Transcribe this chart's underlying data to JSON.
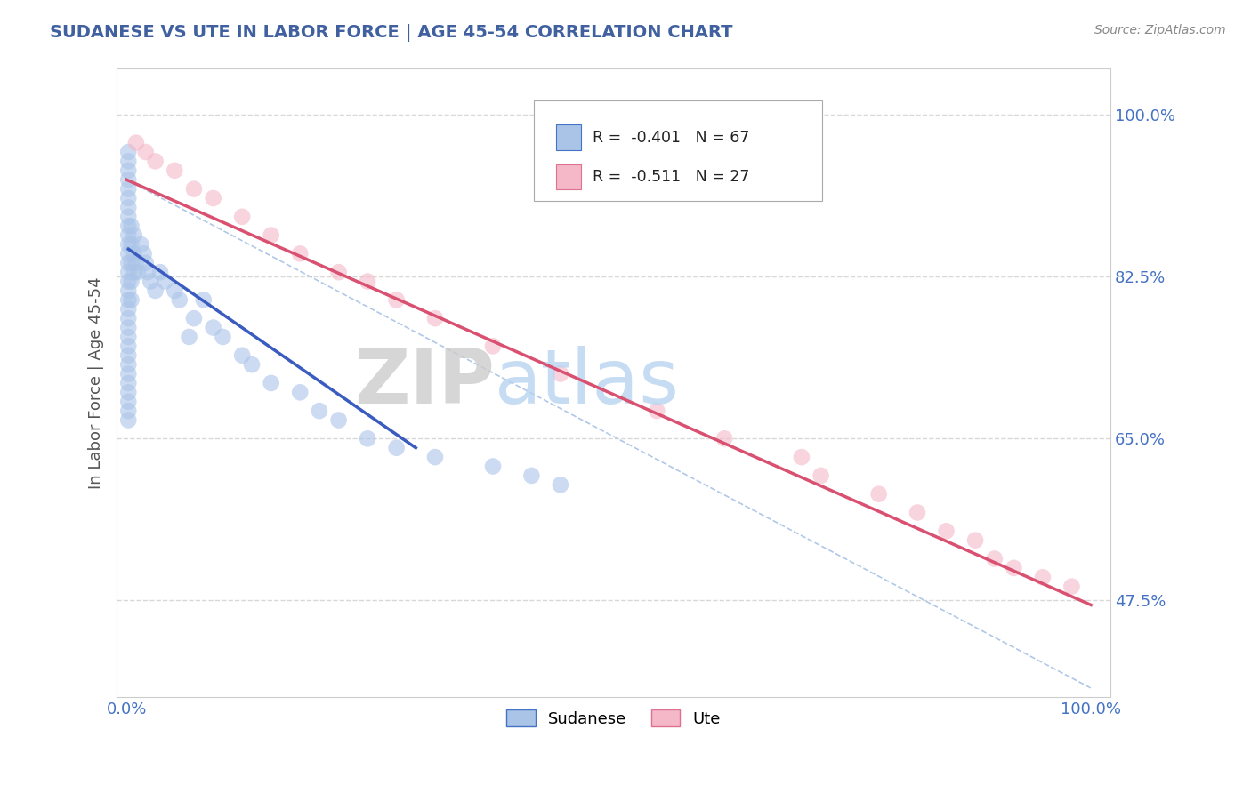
{
  "title": "SUDANESE VS UTE IN LABOR FORCE | AGE 45-54 CORRELATION CHART",
  "source_text": "Source: ZipAtlas.com",
  "ylabel": "In Labor Force | Age 45-54",
  "blue_R": -0.401,
  "blue_N": 67,
  "pink_R": -0.511,
  "pink_N": 27,
  "blue_dot_color": "#aac4e8",
  "blue_edge_color": "#4472c4",
  "blue_line_color": "#3a5bbf",
  "pink_dot_color": "#f4b8c8",
  "pink_edge_color": "#e07090",
  "pink_line_color": "#d95070",
  "diag_color": "#b0c8e8",
  "grid_color": "#d8d8d8",
  "legend_blue_label": "Sudanese",
  "legend_pink_label": "Ute",
  "watermark_zip": "ZIP",
  "watermark_atlas": "atlas",
  "title_color": "#4060a0",
  "source_color": "#888888",
  "tick_color": "#4472c4",
  "ylabel_color": "#555555",
  "x_ticks": [
    0.0,
    1.0
  ],
  "x_tick_labels": [
    "0.0%",
    "100.0%"
  ],
  "y_ticks": [
    0.475,
    0.65,
    0.825,
    1.0
  ],
  "y_tick_labels": [
    "47.5%",
    "65.0%",
    "82.5%",
    "100.0%"
  ],
  "xlim": [
    -0.01,
    1.02
  ],
  "ylim": [
    0.37,
    1.05
  ],
  "sudanese_x": [
    0.002,
    0.002,
    0.002,
    0.002,
    0.002,
    0.002,
    0.002,
    0.002,
    0.002,
    0.002,
    0.002,
    0.002,
    0.002,
    0.002,
    0.002,
    0.002,
    0.002,
    0.002,
    0.002,
    0.002,
    0.002,
    0.002,
    0.002,
    0.002,
    0.002,
    0.002,
    0.002,
    0.002,
    0.002,
    0.002,
    0.005,
    0.005,
    0.005,
    0.005,
    0.005,
    0.008,
    0.008,
    0.008,
    0.01,
    0.012,
    0.015,
    0.018,
    0.02,
    0.022,
    0.025,
    0.03,
    0.035,
    0.04,
    0.05,
    0.055,
    0.065,
    0.07,
    0.08,
    0.09,
    0.1,
    0.12,
    0.13,
    0.15,
    0.18,
    0.2,
    0.22,
    0.25,
    0.28,
    0.32,
    0.38,
    0.42,
    0.45
  ],
  "sudanese_y": [
    0.96,
    0.95,
    0.94,
    0.93,
    0.92,
    0.91,
    0.9,
    0.89,
    0.88,
    0.87,
    0.86,
    0.85,
    0.84,
    0.83,
    0.82,
    0.81,
    0.8,
    0.79,
    0.78,
    0.77,
    0.76,
    0.75,
    0.74,
    0.73,
    0.72,
    0.71,
    0.7,
    0.69,
    0.68,
    0.67,
    0.88,
    0.86,
    0.84,
    0.82,
    0.8,
    0.87,
    0.85,
    0.83,
    0.84,
    0.83,
    0.86,
    0.85,
    0.84,
    0.83,
    0.82,
    0.81,
    0.83,
    0.82,
    0.81,
    0.8,
    0.76,
    0.78,
    0.8,
    0.77,
    0.76,
    0.74,
    0.73,
    0.71,
    0.7,
    0.68,
    0.67,
    0.65,
    0.64,
    0.63,
    0.62,
    0.61,
    0.6
  ],
  "ute_x": [
    0.01,
    0.02,
    0.03,
    0.05,
    0.07,
    0.09,
    0.12,
    0.15,
    0.18,
    0.22,
    0.25,
    0.28,
    0.32,
    0.38,
    0.45,
    0.55,
    0.62,
    0.7,
    0.72,
    0.78,
    0.82,
    0.85,
    0.88,
    0.9,
    0.92,
    0.95,
    0.98
  ],
  "ute_y": [
    0.97,
    0.96,
    0.95,
    0.94,
    0.92,
    0.91,
    0.89,
    0.87,
    0.85,
    0.83,
    0.82,
    0.8,
    0.78,
    0.75,
    0.72,
    0.68,
    0.65,
    0.63,
    0.61,
    0.59,
    0.57,
    0.55,
    0.54,
    0.52,
    0.51,
    0.5,
    0.49
  ],
  "blue_line_x": [
    0.002,
    0.3
  ],
  "blue_line_y": [
    0.855,
    0.64
  ],
  "pink_line_x": [
    0.0,
    1.0
  ],
  "pink_line_y": [
    0.93,
    0.47
  ],
  "diag_line_x": [
    0.0,
    1.0
  ],
  "diag_line_y": [
    0.93,
    0.38
  ]
}
